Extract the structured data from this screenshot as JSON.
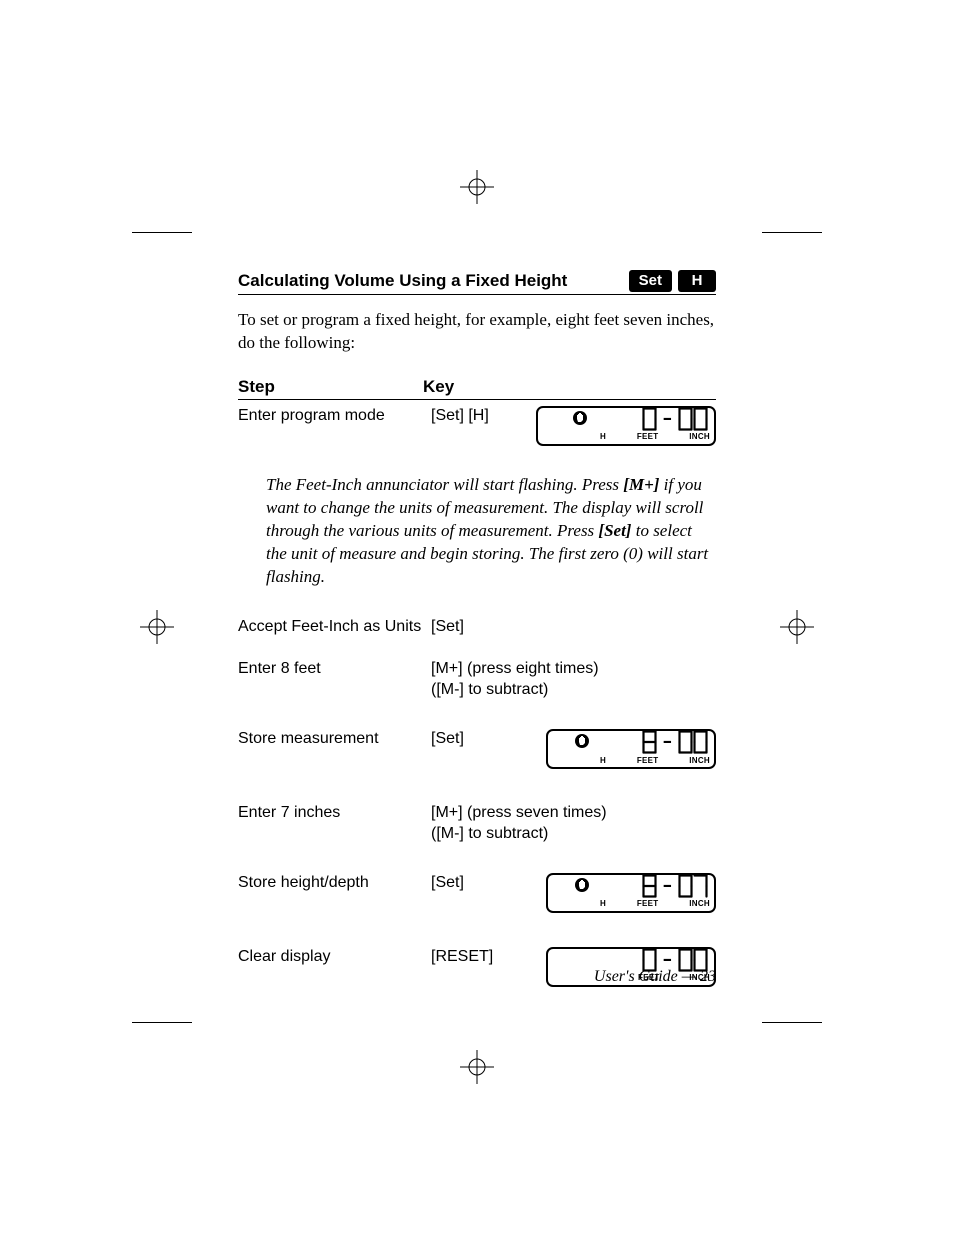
{
  "section_title": "Calculating Volume Using a Fixed Height",
  "badges": {
    "set": "Set",
    "h": "H"
  },
  "intro": "To set or program a fixed height, for example, eight feet seven inches, do the following:",
  "table": {
    "head_step": "Step",
    "head_key": "Key"
  },
  "rows": {
    "r1": {
      "step": "Enter program mode",
      "key": "[Set] [H]"
    },
    "r2": {
      "step": "Accept Feet-Inch as Units",
      "key": "[Set]"
    },
    "r3": {
      "step": "Enter 8 feet",
      "key1": "[M+] (press eight times)",
      "key2": "([M-] to subtract)"
    },
    "r4": {
      "step": "Store measurement",
      "key": "[Set]"
    },
    "r5": {
      "step": "Enter 7 inches",
      "key1": "[M+] (press seven times)",
      "key2": "([M-] to subtract)"
    },
    "r6": {
      "step": "Store height/depth",
      "key": "[Set]"
    },
    "r7": {
      "step": "Clear display",
      "key": "[RESET]"
    }
  },
  "note": {
    "t1": "The Feet-Inch annunciator will start flashing. Press ",
    "b1": "[M+]",
    "t2": " if you want to change the units of measurement. The display will scroll through the various units of measurement. Press ",
    "b2": "[Set]",
    "t3": " to select the unit of measure and begin storing. The first zero (0) will start flashing."
  },
  "lcd": {
    "units_h": "H",
    "units_feet": "FEET",
    "units_inch": "INCH",
    "d1": {
      "feet": "0",
      "inch": "00",
      "show_h": true,
      "show_icon": true
    },
    "d2": {
      "feet": "8",
      "inch": "00",
      "show_h": true,
      "show_icon": true
    },
    "d3": {
      "feet": "8",
      "inch": "07",
      "show_h": true,
      "show_icon": true
    },
    "d4": {
      "feet": "0",
      "inch": "00",
      "show_h": false,
      "show_icon": false
    }
  },
  "footer": "User's Guide — 23",
  "style": {
    "seg": {
      "w": 15,
      "h": 24,
      "stroke": "#000000",
      "stroke_w": 2.2
    }
  }
}
